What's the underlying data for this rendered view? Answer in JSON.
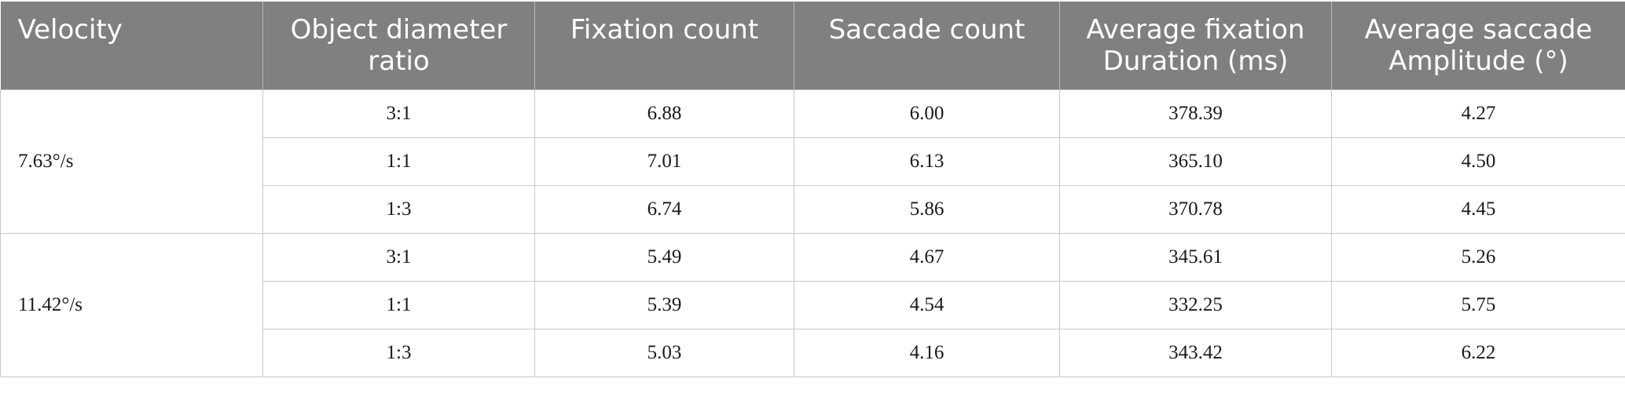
{
  "table": {
    "headers": [
      "Velocity",
      "Object diameter ratio",
      "Fixation count",
      "Saccade count",
      "Average fixation Duration (ms)",
      "Average saccade Amplitude (°)"
    ],
    "groups": [
      {
        "velocity": "7.63°/s",
        "rows": [
          [
            "3:1",
            "6.88",
            "6.00",
            "378.39",
            "4.27"
          ],
          [
            "1:1",
            "7.01",
            "6.13",
            "365.10",
            "4.50"
          ],
          [
            "1:3",
            "6.74",
            "5.86",
            "370.78",
            "4.45"
          ]
        ]
      },
      {
        "velocity": "11.42°/s",
        "rows": [
          [
            "3:1",
            "5.49",
            "4.67",
            "345.61",
            "5.26"
          ],
          [
            "1:1",
            "5.39",
            "4.54",
            "332.25",
            "5.75"
          ],
          [
            "1:3",
            "5.03",
            "4.16",
            "343.42",
            "6.22"
          ]
        ]
      }
    ]
  },
  "colors": {
    "header_bg": "#7f807f",
    "header_text": "#ffffff",
    "grid_line": "#c8c8c8"
  }
}
